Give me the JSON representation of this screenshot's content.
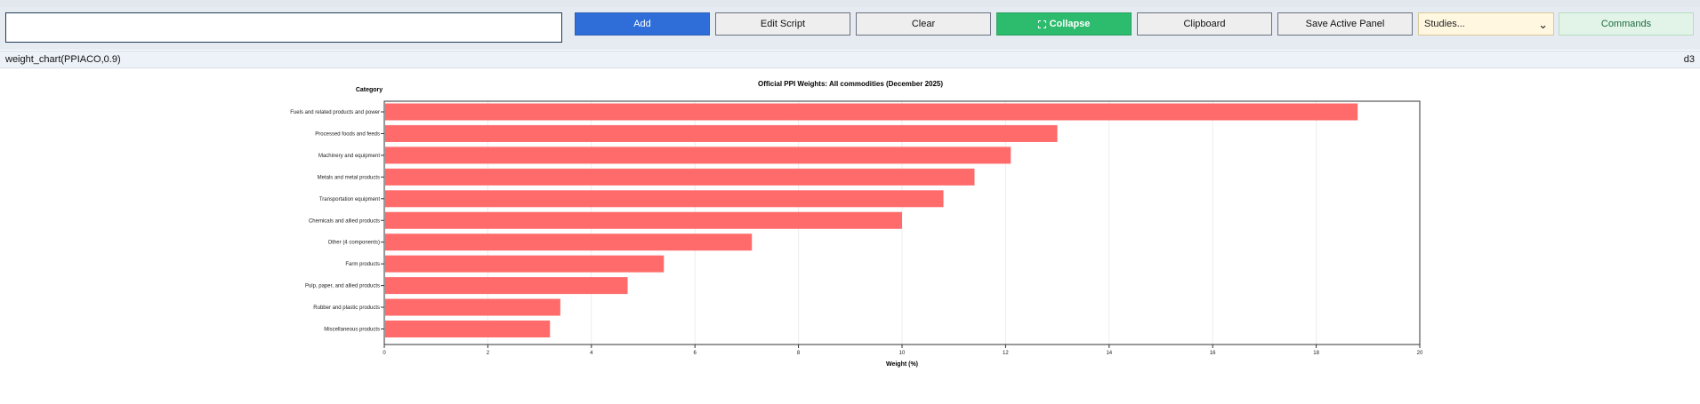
{
  "toolbar": {
    "input_value": "",
    "add_label": "Add",
    "edit_script_label": "Edit Script",
    "clear_label": "Clear",
    "collapse_label": "Collapse",
    "clipboard_label": "Clipboard",
    "save_active_panel_label": "Save Active Panel",
    "studies_selected": "Studies...",
    "commands_label": "Commands"
  },
  "panel": {
    "title": "weight_chart(PPIACO,0.9)",
    "tag": "d3"
  },
  "colors": {
    "bar": "#ff6b6b",
    "add_button": "#2f6ed8",
    "collapse_button": "#2dbb6d"
  },
  "chart_data": {
    "type": "bar",
    "orientation": "horizontal",
    "title": "Official PPI Weights: All commodities (December 2025)",
    "xlabel": "Weight (%)",
    "ylabel": "Category",
    "xlim": [
      0,
      20
    ],
    "x_ticks": [
      "0",
      "2",
      "4",
      "6",
      "8",
      "10",
      "12",
      "14",
      "16",
      "18",
      "20"
    ],
    "grid": true,
    "categories": [
      "Fuels and related products and power",
      "Processed foods and feeds",
      "Machinery and equipment",
      "Metals and metal products",
      "Transportation equipment",
      "Chemicals and allied products",
      "Other (4 components)",
      "Farm products",
      "Pulp, paper, and allied products",
      "Rubber and plastic products",
      "Miscellaneous products"
    ],
    "values": [
      18.8,
      13.0,
      12.1,
      11.4,
      10.8,
      10.0,
      7.1,
      5.4,
      4.7,
      3.4,
      3.2
    ]
  }
}
